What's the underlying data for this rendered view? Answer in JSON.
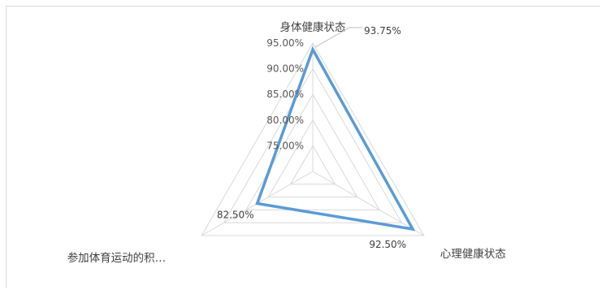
{
  "chart_data": {
    "type": "radar",
    "categories": [
      "身体健康状态",
      "心理健康状态",
      "参加体育运动的积…"
    ],
    "series": [
      {
        "values": [
          93.75,
          92.5,
          82.5
        ],
        "color": "#5b9bd5"
      }
    ],
    "radial_ticks": [
      "75.00%",
      "80.00%",
      "85.00%",
      "90.00%",
      "95.00%"
    ],
    "range": [
      70,
      95
    ],
    "data_labels": [
      "93.75%",
      "92.50%",
      "82.50%"
    ],
    "grid_color": "#d9d9d9",
    "legend": "none"
  }
}
